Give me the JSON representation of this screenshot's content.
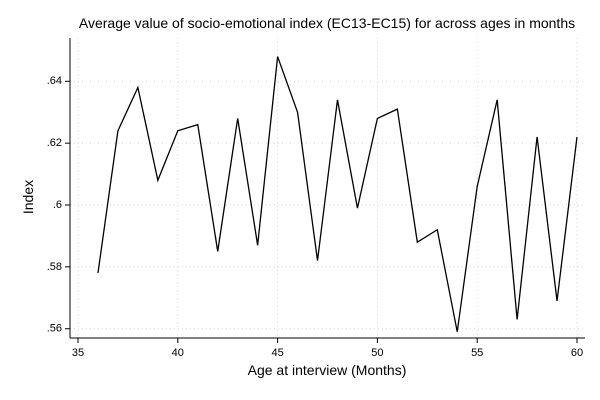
{
  "chart_data": {
    "type": "line",
    "title": "Average value of socio-emotional index (EC13-EC15) for across ages in months",
    "xlabel": "Age at interview (Months)",
    "ylabel": "Index",
    "xlim": [
      35,
      60
    ],
    "ylim": [
      0.557,
      0.654
    ],
    "x_ticks": [
      35,
      40,
      45,
      50,
      55,
      60
    ],
    "x_tick_labels": [
      "35",
      "40",
      "45",
      "50",
      "55",
      "60"
    ],
    "y_ticks": [
      0.56,
      0.58,
      0.6,
      0.62,
      0.64
    ],
    "y_tick_labels": [
      ".56",
      ".58",
      ".6",
      ".62",
      ".64"
    ],
    "grid": true,
    "series": [
      {
        "color": "#000000",
        "x": [
          36,
          37,
          38,
          39,
          40,
          41,
          42,
          43,
          44,
          45,
          46,
          47,
          48,
          49,
          50,
          51,
          52,
          53,
          54,
          55,
          56,
          57,
          58,
          59,
          60
        ],
        "y": [
          0.578,
          0.624,
          0.638,
          0.608,
          0.624,
          0.626,
          0.585,
          0.628,
          0.587,
          0.648,
          0.63,
          0.582,
          0.634,
          0.599,
          0.628,
          0.631,
          0.588,
          0.592,
          0.559,
          0.606,
          0.634,
          0.563,
          0.622,
          0.569,
          0.622
        ]
      }
    ]
  }
}
